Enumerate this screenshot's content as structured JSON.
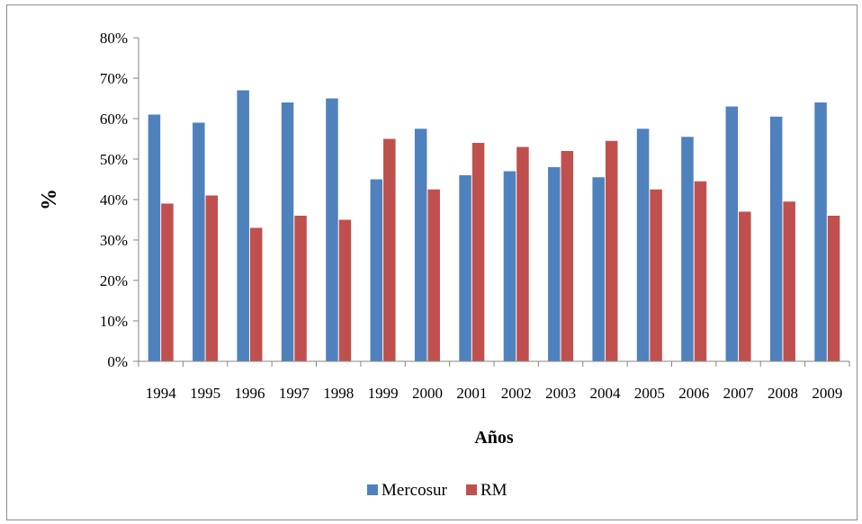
{
  "chart_data": {
    "type": "bar",
    "title": "",
    "xlabel": "Años",
    "ylabel": "%",
    "ylim": [
      0,
      0.8
    ],
    "y_ticks": [
      "0%",
      "10%",
      "20%",
      "30%",
      "40%",
      "50%",
      "60%",
      "70%",
      "80%"
    ],
    "y_tick_values": [
      0,
      0.1,
      0.2,
      0.3,
      0.4,
      0.5,
      0.6,
      0.7,
      0.8
    ],
    "grid": false,
    "legend_position": "bottom",
    "categories": [
      "1994",
      "1995",
      "1996",
      "1997",
      "1998",
      "1999",
      "2000",
      "2001",
      "2002",
      "2003",
      "2004",
      "2005",
      "2006",
      "2007",
      "2008",
      "2009"
    ],
    "series": [
      {
        "name": "Mercosur",
        "color": "#4F81BD",
        "values": [
          0.61,
          0.59,
          0.67,
          0.64,
          0.65,
          0.45,
          0.575,
          0.46,
          0.47,
          0.48,
          0.455,
          0.575,
          0.555,
          0.63,
          0.605,
          0.64
        ]
      },
      {
        "name": "RM",
        "color": "#C0504D",
        "values": [
          0.39,
          0.41,
          0.33,
          0.36,
          0.35,
          0.55,
          0.425,
          0.54,
          0.53,
          0.52,
          0.545,
          0.425,
          0.445,
          0.37,
          0.395,
          0.36
        ]
      }
    ]
  }
}
